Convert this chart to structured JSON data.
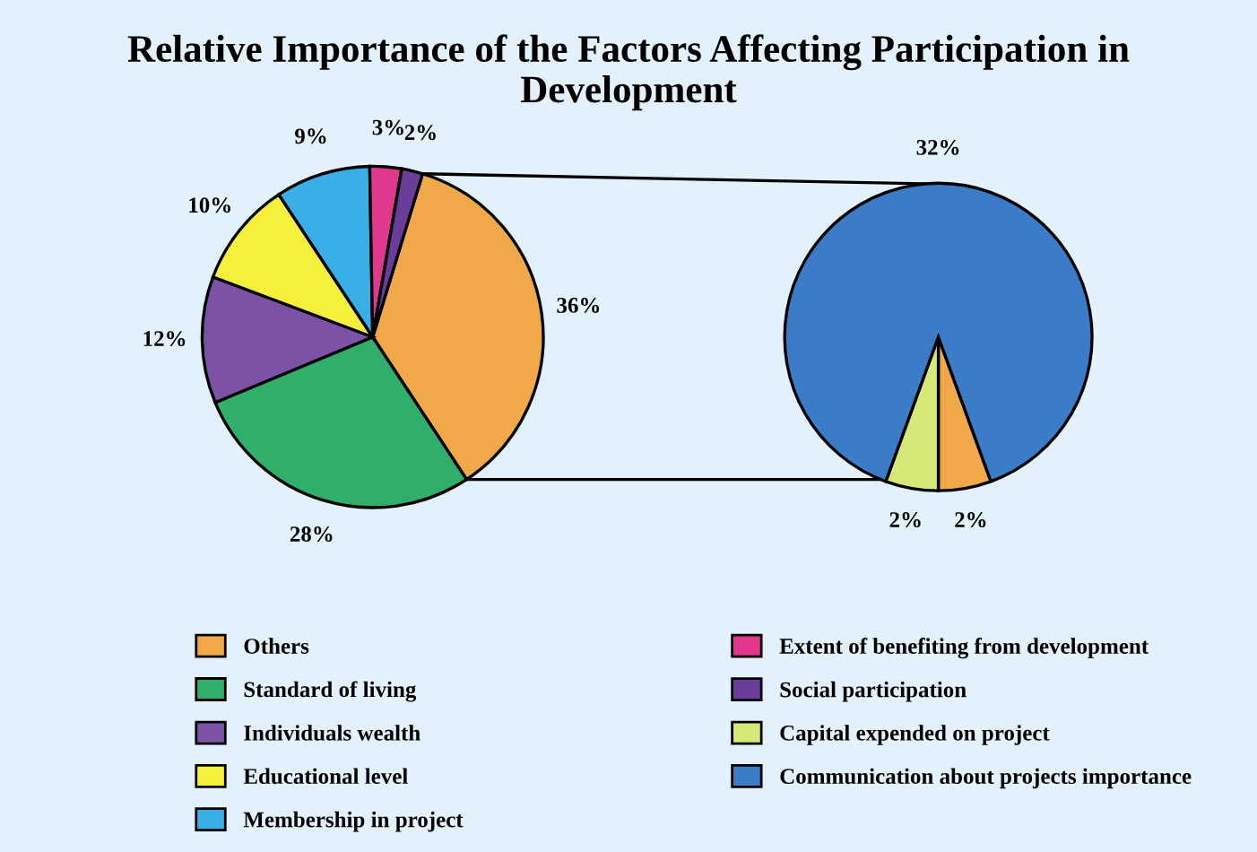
{
  "chart_data": [
    {
      "type": "pie",
      "title": "Relative Importance of the Factors Affecting Participation in Development",
      "legend": "bottom",
      "categories": [
        "Others",
        "Standard of living",
        "Individuals wealth",
        "Educational level",
        "Membership in project",
        "Extent of benefiting from development",
        "Social participation"
      ],
      "values": [
        36,
        28,
        12,
        10,
        9,
        3,
        2
      ],
      "value_labels": [
        "36%",
        "28%",
        "12%",
        "10%",
        "9%",
        "3%",
        "2%"
      ],
      "colors": [
        "#f0a848",
        "#2fae6c",
        "#7c52a6",
        "#f6f03c",
        "#3aaee6",
        "#e0388c",
        "#6a3d9a"
      ]
    },
    {
      "type": "pie",
      "legend": "bottom",
      "categories": [
        null,
        "Capital expended on project",
        "Communication about projects importance"
      ],
      "values": [
        2,
        2,
        32
      ],
      "value_labels": [
        "2%",
        "2%",
        "32%"
      ],
      "colors": [
        "#f0a848",
        "#d6e878",
        "#3a7cc8"
      ]
    }
  ]
}
